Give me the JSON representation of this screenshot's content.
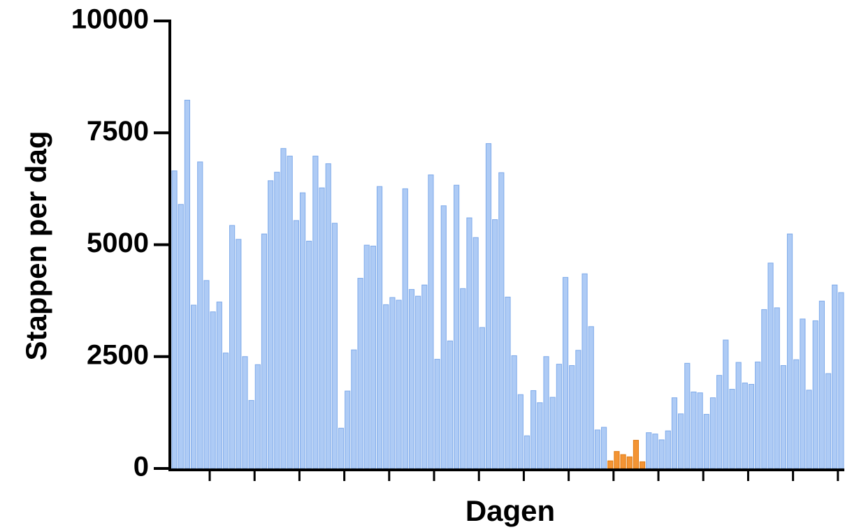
{
  "chart_data": {
    "type": "bar",
    "y_label": "Stappen per dag",
    "x_label": "Dagen",
    "categories": [
      null,
      null,
      null,
      null,
      null,
      null,
      null,
      null,
      null,
      null,
      null,
      null,
      null,
      null,
      null,
      null,
      null,
      null,
      null,
      null,
      null,
      null,
      null,
      null,
      null,
      null,
      null,
      null,
      null,
      null,
      null,
      null,
      null,
      null,
      null,
      null,
      null,
      null,
      null,
      null,
      null,
      null,
      null,
      null,
      null,
      null,
      null,
      null,
      null,
      null,
      null,
      null,
      null,
      null,
      null,
      null,
      null,
      null,
      null,
      null,
      null,
      null,
      null,
      null,
      null,
      null,
      null,
      null,
      null,
      null,
      null,
      null,
      null,
      null,
      null,
      null,
      null,
      null,
      null,
      null,
      null,
      null,
      null,
      null,
      null,
      null,
      null,
      null,
      null,
      null,
      null,
      null,
      null,
      null,
      null,
      null,
      null,
      null,
      null,
      null,
      null,
      null,
      null,
      null,
      null
    ],
    "values": [
      6650,
      5900,
      8230,
      3650,
      6850,
      4200,
      3500,
      3720,
      2580,
      5430,
      5120,
      2500,
      1520,
      2320,
      5240,
      6430,
      6620,
      7150,
      6980,
      5540,
      6160,
      5080,
      6980,
      6270,
      6810,
      5480,
      900,
      1730,
      2650,
      4250,
      4990,
      4970,
      6300,
      3660,
      3820,
      3760,
      6250,
      4000,
      3850,
      4100,
      6560,
      2440,
      5870,
      2850,
      6330,
      4020,
      5600,
      5160,
      3150,
      7260,
      5560,
      6610,
      3830,
      2520,
      1650,
      730,
      1740,
      1470,
      2500,
      1590,
      2330,
      4270,
      2300,
      2640,
      4350,
      3170,
      860,
      920,
      170,
      380,
      310,
      260,
      630,
      150,
      800,
      770,
      640,
      840,
      1580,
      1220,
      2350,
      1710,
      1690,
      1210,
      1580,
      2080,
      2870,
      1770,
      2370,
      1910,
      1880,
      2380,
      3550,
      4590,
      3590,
      2300,
      5240,
      2430,
      3340,
      1750,
      3300,
      3740,
      2120,
      4100,
      3930
    ],
    "color": "#aecbf5",
    "highlight_color": "#f39434",
    "highlight": [
      false,
      false,
      false,
      false,
      false,
      false,
      false,
      false,
      false,
      false,
      false,
      false,
      false,
      false,
      false,
      false,
      false,
      false,
      false,
      false,
      false,
      false,
      false,
      false,
      false,
      false,
      false,
      false,
      false,
      false,
      false,
      false,
      false,
      false,
      false,
      false,
      false,
      false,
      false,
      false,
      false,
      false,
      false,
      false,
      false,
      false,
      false,
      false,
      false,
      false,
      false,
      false,
      false,
      false,
      false,
      false,
      false,
      false,
      false,
      false,
      false,
      false,
      false,
      false,
      false,
      false,
      false,
      false,
      true,
      true,
      true,
      true,
      true,
      true,
      false,
      false,
      false,
      false,
      false,
      false,
      false,
      false,
      false,
      false,
      false,
      false,
      false,
      false,
      false,
      false,
      false,
      false,
      false,
      false,
      false,
      false,
      false,
      false,
      false,
      false,
      false,
      false,
      false,
      false,
      false
    ],
    "ylim": [
      0,
      10000
    ],
    "yticks": [
      0,
      2500,
      5000,
      7500,
      10000
    ],
    "grid": false
  }
}
